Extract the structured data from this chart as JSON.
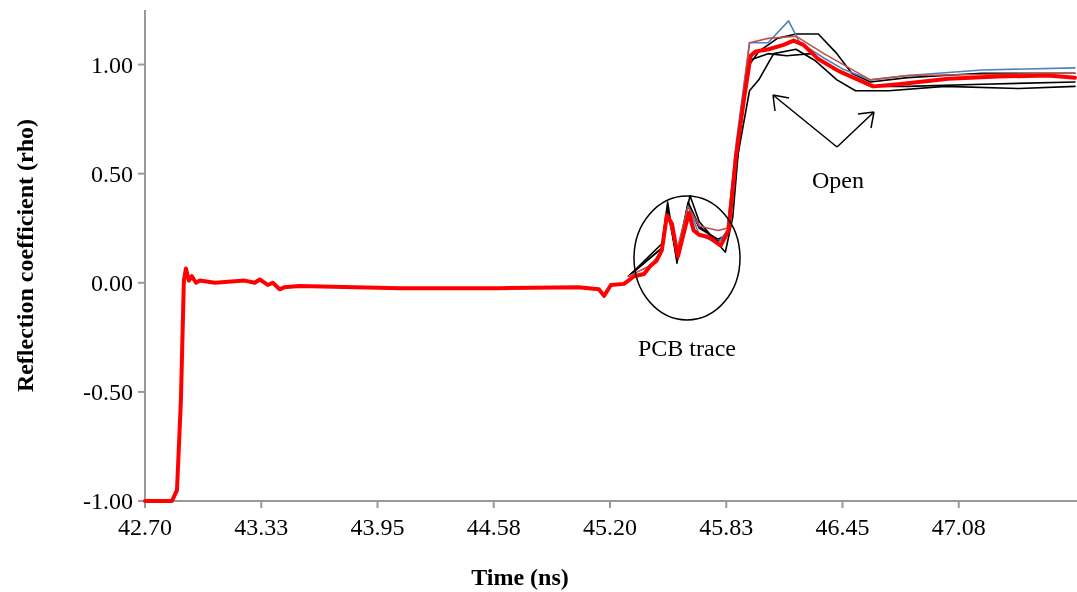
{
  "chart_data": {
    "type": "line",
    "xlabel": "Time (ns)",
    "ylabel": "Reflection coefficient (rho)",
    "xlim": [
      42.7,
      47.7
    ],
    "ylim": [
      -1,
      1.25
    ],
    "xticks": [
      {
        "value": 42.7,
        "label": "42.70"
      },
      {
        "value": 43.325,
        "label": "43.33"
      },
      {
        "value": 43.95,
        "label": "43.95"
      },
      {
        "value": 44.575,
        "label": "44.58"
      },
      {
        "value": 45.2,
        "label": "45.20"
      },
      {
        "value": 45.825,
        "label": "45.83"
      },
      {
        "value": 46.45,
        "label": "46.45"
      },
      {
        "value": 47.075,
        "label": "47.08"
      }
    ],
    "yticks": [
      {
        "value": -1,
        "label": "-1.00"
      },
      {
        "value": -0.5,
        "label": "-0.50"
      },
      {
        "value": 0,
        "label": "0.00"
      },
      {
        "value": 0.5,
        "label": "0.50"
      },
      {
        "value": 1,
        "label": "1.00"
      }
    ],
    "grid": false,
    "line_style": "solid",
    "annotations": [
      "PCB trace",
      "Open"
    ],
    "series": [
      {
        "color": "#000000",
        "x": [
          45.3,
          45.48,
          45.51,
          45.56,
          45.63,
          45.68,
          45.79,
          45.82,
          45.86,
          45.9,
          45.95,
          46.0,
          46.1,
          46.2,
          46.32,
          46.42,
          46.5,
          46.6,
          46.8,
          47.2,
          47.7
        ],
        "values": [
          0.03,
          0.18,
          0.37,
          0.09,
          0.4,
          0.28,
          0.17,
          0.14,
          0.3,
          0.7,
          1.0,
          1.06,
          1.12,
          1.14,
          1.14,
          1.05,
          0.96,
          0.92,
          0.94,
          0.96,
          0.96
        ]
      },
      {
        "color": "#000000",
        "x": [
          45.3,
          45.48,
          45.51,
          45.56,
          45.62,
          45.68,
          45.78,
          45.83,
          45.88,
          45.95,
          46.0,
          46.08,
          46.2,
          46.3,
          46.42,
          46.52,
          46.7,
          47.0,
          47.4,
          47.7
        ],
        "values": [
          0.03,
          0.16,
          0.33,
          0.11,
          0.36,
          0.25,
          0.2,
          0.22,
          0.55,
          0.88,
          0.93,
          1.05,
          1.07,
          1.02,
          0.93,
          0.88,
          0.88,
          0.9,
          0.89,
          0.9
        ]
      },
      {
        "color": "#000000",
        "x": [
          45.3,
          45.48,
          45.51,
          45.56,
          45.62,
          45.68,
          45.78,
          45.83,
          45.88,
          45.95,
          46.05,
          46.15,
          46.28,
          46.4,
          46.6,
          46.8,
          47.2,
          47.7
        ],
        "values": [
          0.03,
          0.16,
          0.34,
          0.12,
          0.37,
          0.26,
          0.19,
          0.22,
          0.6,
          1.02,
          1.05,
          1.04,
          1.05,
          0.98,
          0.9,
          0.9,
          0.91,
          0.92
        ]
      },
      {
        "color": "#4f81bd",
        "x": [
          45.56,
          45.62,
          45.68,
          45.78,
          45.83,
          45.88,
          45.95,
          46.05,
          46.16,
          46.22,
          46.35,
          46.45,
          46.6,
          46.8,
          47.2,
          47.7
        ],
        "values": [
          0.14,
          0.35,
          0.22,
          0.18,
          0.24,
          0.65,
          1.1,
          1.1,
          1.2,
          1.1,
          1.03,
          0.98,
          0.93,
          0.95,
          0.975,
          0.985
        ]
      },
      {
        "color": "#c0504d",
        "x": [
          45.3,
          45.42,
          45.48,
          45.51,
          45.56,
          45.62,
          45.68,
          45.78,
          45.83,
          45.88,
          45.95,
          46.05,
          46.2,
          46.35,
          46.6,
          46.8,
          47.7
        ],
        "values": [
          0.03,
          0.08,
          0.15,
          0.31,
          0.15,
          0.35,
          0.26,
          0.24,
          0.25,
          0.62,
          1.1,
          1.12,
          1.13,
          1.05,
          0.93,
          0.95,
          0.96
        ]
      },
      {
        "color": "#ff0000",
        "x": [
          42.7,
          42.845,
          42.872,
          42.893,
          42.909,
          42.92,
          42.936,
          42.952,
          42.974,
          42.995,
          43.076,
          43.236,
          43.29,
          43.317,
          43.36,
          43.387,
          43.424,
          43.45,
          43.53,
          44.07,
          44.6,
          45.03,
          45.14,
          45.168,
          45.205,
          45.275,
          45.33,
          45.383,
          45.42,
          45.45,
          45.479,
          45.506,
          45.533,
          45.565,
          45.6,
          45.624,
          45.65,
          45.678,
          45.73,
          45.795,
          45.838,
          45.876,
          45.92,
          45.956,
          45.983,
          46.053,
          46.133,
          46.187,
          46.24,
          46.32,
          46.43,
          46.616,
          46.75,
          47.02,
          47.287,
          47.555,
          47.7
        ],
        "values": [
          -1,
          -1,
          -0.95,
          -0.54,
          0.01,
          0.065,
          0.01,
          0.03,
          0,
          0.01,
          0,
          0.01,
          0,
          0.015,
          -0.01,
          0,
          -0.03,
          -0.02,
          -0.015,
          -0.025,
          -0.025,
          -0.02,
          -0.03,
          -0.06,
          -0.01,
          -0.005,
          0.03,
          0.04,
          0.08,
          0.1,
          0.15,
          0.31,
          0.27,
          0.12,
          0.24,
          0.32,
          0.24,
          0.22,
          0.21,
          0.17,
          0.24,
          0.57,
          0.84,
          1.04,
          1.06,
          1.07,
          1.09,
          1.11,
          1.09,
          1.025,
          0.97,
          0.9,
          0.91,
          0.935,
          0.945,
          0.95,
          0.94
        ]
      }
    ]
  }
}
